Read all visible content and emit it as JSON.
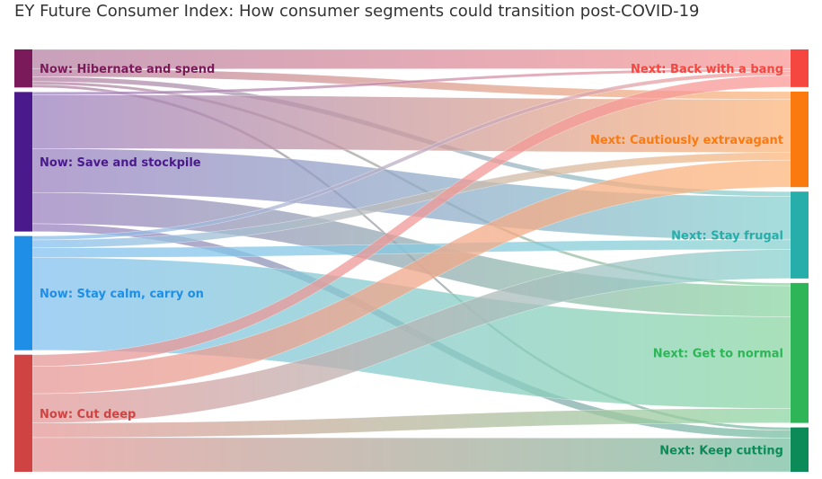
{
  "title": "EY Future Consumer Index: How consumer segments could transition post-COVID-19",
  "chart_data": {
    "type": "sankey",
    "title": "EY Future Consumer Index: How consumer segments could transition post-COVID-19",
    "sources": [
      {
        "label": "Now: Hibernate and spend",
        "color": "#7b1a5a"
      },
      {
        "label": "Now: Save and stockpile",
        "color": "#4a1a8c"
      },
      {
        "label": "Now: Stay calm, carry on",
        "color": "#1e8ee6"
      },
      {
        "label": "Now: Cut deep",
        "color": "#d04343"
      }
    ],
    "targets": [
      {
        "label": "Next: Back with a bang",
        "color": "#f5463f"
      },
      {
        "label": "Next: Cautiously extravagant",
        "color": "#fb7a10"
      },
      {
        "label": "Next: Stay frugal",
        "color": "#27aeaa"
      },
      {
        "label": "Next: Get to normal",
        "color": "#2db558"
      },
      {
        "label": "Next: Keep cutting",
        "color": "#0c8b58"
      }
    ],
    "flows": [
      {
        "source": 0,
        "target": 0,
        "value": 20
      },
      {
        "source": 0,
        "target": 1,
        "value": 8
      },
      {
        "source": 0,
        "target": 2,
        "value": 5
      },
      {
        "source": 0,
        "target": 3,
        "value": 3
      },
      {
        "source": 0,
        "target": 4,
        "value": 3
      },
      {
        "source": 1,
        "target": 0,
        "value": 3
      },
      {
        "source": 1,
        "target": 1,
        "value": 55
      },
      {
        "source": 1,
        "target": 2,
        "value": 45
      },
      {
        "source": 1,
        "target": 3,
        "value": 32
      },
      {
        "source": 1,
        "target": 4,
        "value": 8
      },
      {
        "source": 2,
        "target": 0,
        "value": 4
      },
      {
        "source": 2,
        "target": 1,
        "value": 8
      },
      {
        "source": 2,
        "target": 2,
        "value": 10
      },
      {
        "source": 2,
        "target": 3,
        "value": 95
      },
      {
        "source": 3,
        "target": 0,
        "value": 12
      },
      {
        "source": 3,
        "target": 1,
        "value": 28
      },
      {
        "source": 3,
        "target": 2,
        "value": 30
      },
      {
        "source": 3,
        "target": 3,
        "value": 15
      },
      {
        "source": 3,
        "target": 4,
        "value": 35
      }
    ]
  }
}
